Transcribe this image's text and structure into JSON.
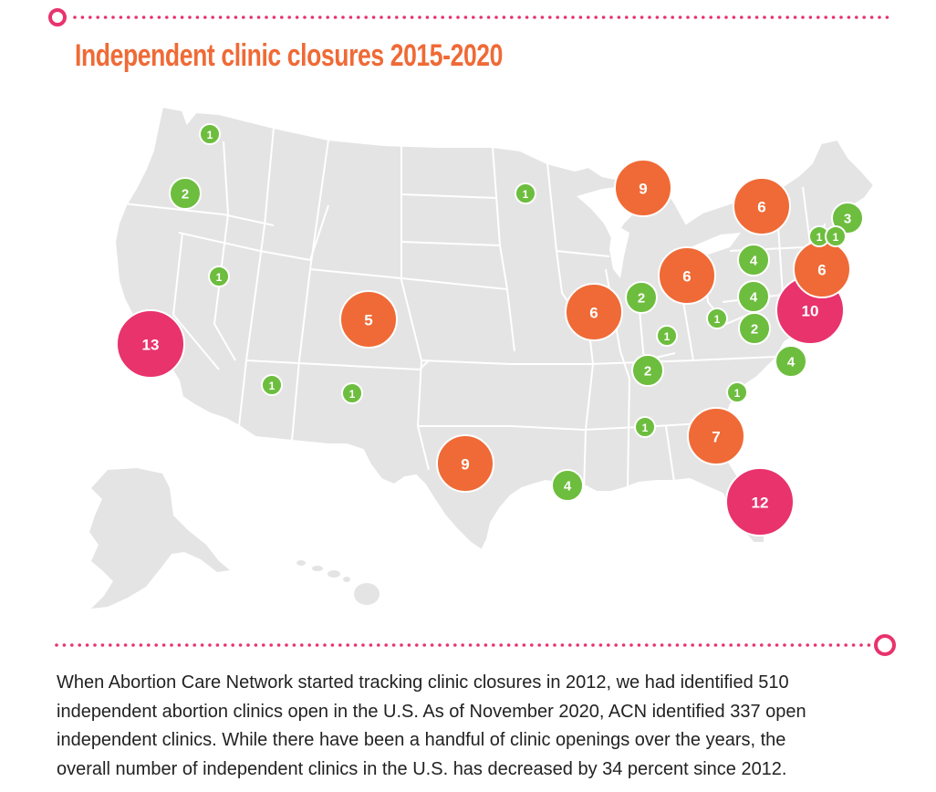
{
  "title": "Independent clinic closures 2015-2020",
  "colors": {
    "accent_orange": "#ef6a36",
    "accent_pink": "#e8336d",
    "accent_green": "#6dbd3e",
    "map_fill": "#e4e4e4",
    "map_border": "#ffffff",
    "divider": "#e8336d"
  },
  "map": {
    "region": "United States",
    "legend": "none",
    "markers": [
      {
        "count": 1,
        "state": "Washington",
        "category": "small"
      },
      {
        "count": 2,
        "state": "Oregon",
        "category": "small"
      },
      {
        "count": 1,
        "state": "Nevada",
        "category": "small"
      },
      {
        "count": 13,
        "state": "California",
        "category": "large"
      },
      {
        "count": 1,
        "state": "Arizona",
        "category": "small"
      },
      {
        "count": 1,
        "state": "New Mexico",
        "category": "small"
      },
      {
        "count": 5,
        "state": "Colorado",
        "category": "medium"
      },
      {
        "count": 9,
        "state": "Texas",
        "category": "medium"
      },
      {
        "count": 1,
        "state": "Minnesota",
        "category": "small"
      },
      {
        "count": 9,
        "state": "Michigan",
        "category": "medium"
      },
      {
        "count": 6,
        "state": "Illinois",
        "category": "medium"
      },
      {
        "count": 2,
        "state": "Indiana",
        "category": "small"
      },
      {
        "count": 6,
        "state": "Ohio",
        "category": "medium"
      },
      {
        "count": 1,
        "state": "Kentucky",
        "category": "small"
      },
      {
        "count": 2,
        "state": "Tennessee",
        "category": "small"
      },
      {
        "count": 4,
        "state": "Louisiana",
        "category": "small"
      },
      {
        "count": 1,
        "state": "Alabama",
        "category": "small"
      },
      {
        "count": 7,
        "state": "Georgia",
        "category": "medium"
      },
      {
        "count": 12,
        "state": "Florida",
        "category": "large"
      },
      {
        "count": 1,
        "state": "South Carolina",
        "category": "small"
      },
      {
        "count": 4,
        "state": "North Carolina",
        "category": "small"
      },
      {
        "count": 2,
        "state": "Virginia",
        "category": "small"
      },
      {
        "count": 1,
        "state": "West Virginia",
        "category": "small"
      },
      {
        "count": 4,
        "state": "Pennsylvania",
        "category": "small"
      },
      {
        "count": 4,
        "state": "Pennsylvania (east)",
        "category": "small"
      },
      {
        "count": 10,
        "state": "Maryland / New Jersey",
        "category": "large"
      },
      {
        "count": 6,
        "state": "New York",
        "category": "medium"
      },
      {
        "count": 6,
        "state": "New York (southeast)",
        "category": "medium"
      },
      {
        "count": 3,
        "state": "Massachusetts",
        "category": "small"
      },
      {
        "count": 1,
        "state": "Connecticut",
        "category": "small"
      },
      {
        "count": 1,
        "state": "Rhode Island",
        "category": "small"
      }
    ]
  },
  "paragraph": {
    "lines": [
      "When Abortion Care Network started tracking clinic closures in 2012, we had identified 510",
      "independent abortion clinics open in the U.S. As of November 2020, ACN identified 337 open",
      "independent clinics. While there have been a handful of clinic openings over the years, the",
      "overall number of independent clinics in the U.S. has decreased by 34 percent since 2012."
    ]
  }
}
